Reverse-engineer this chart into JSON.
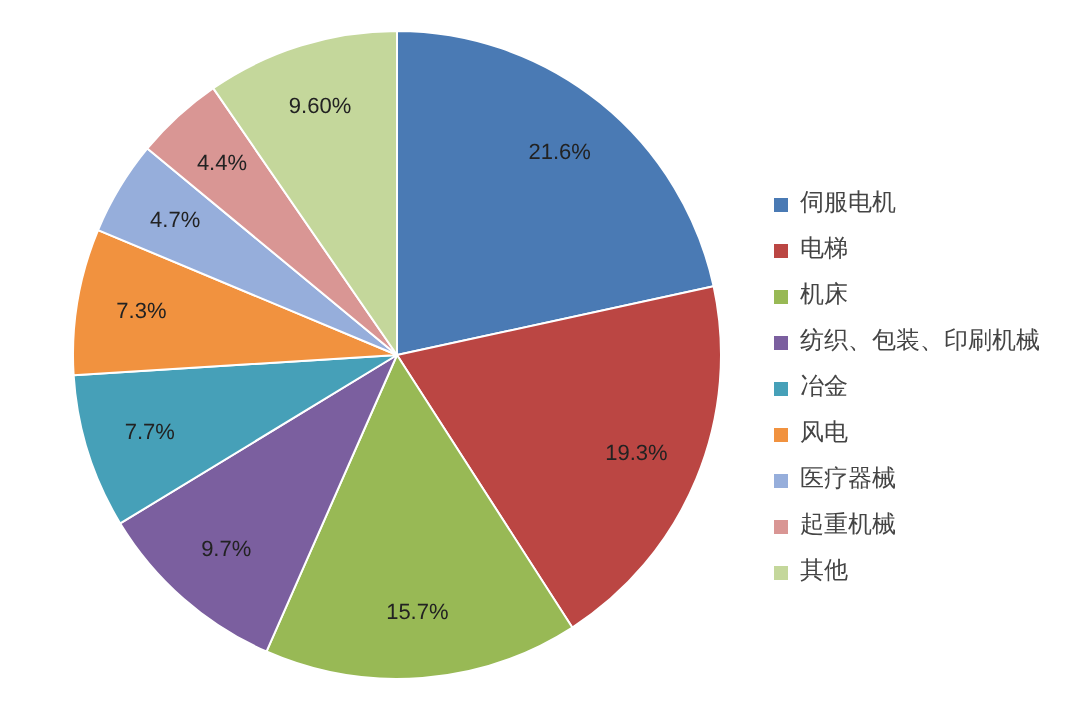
{
  "chart_data": {
    "type": "pie",
    "categories": [
      "伺服电机",
      "电梯",
      "机床",
      "纺织、包装、印刷机械",
      "冶金",
      "风电",
      "医疗器械",
      "起重机械",
      "其他"
    ],
    "values": [
      21.6,
      19.3,
      15.7,
      9.7,
      7.7,
      7.3,
      4.7,
      4.4,
      9.6
    ],
    "value_labels": [
      "21.6%",
      "19.3%",
      "15.7%",
      "9.7%",
      "7.7%",
      "7.3%",
      "4.7%",
      "4.4%",
      "9.60%"
    ],
    "colors": [
      "#4a7ab4",
      "#bb4643",
      "#98b955",
      "#7b5f9f",
      "#46a0b8",
      "#f1923f",
      "#96aedb",
      "#d99694",
      "#c4d79b"
    ],
    "legend": "right"
  }
}
